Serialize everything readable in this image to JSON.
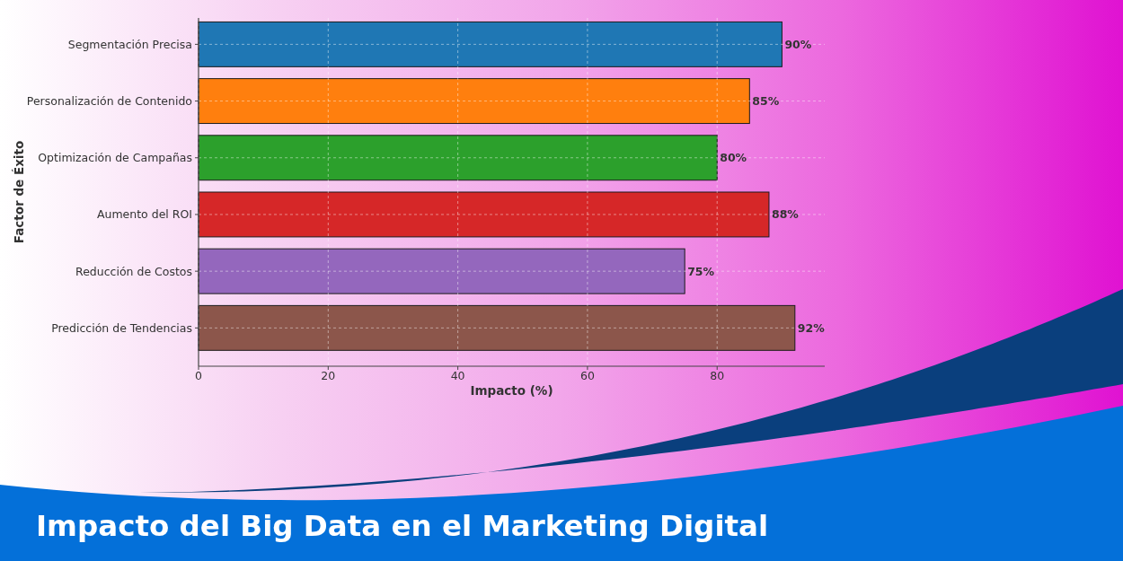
{
  "chart_data": {
    "type": "bar",
    "orientation": "horizontal",
    "title": "Impacto del Big Data en el Marketing Digital",
    "xlabel": "Impacto (%)",
    "ylabel": "Factor de Éxito",
    "categories": [
      "Segmentación Precisa",
      "Personalización de Contenido",
      "Optimización de Campañas",
      "Aumento del ROI",
      "Reducción de Costos",
      "Predicción de Tendencias"
    ],
    "values": [
      90,
      85,
      80,
      88,
      75,
      92
    ],
    "colors": [
      "#1f77b4",
      "#ff7f0e",
      "#2ca02c",
      "#d62728",
      "#9467bd",
      "#8c564b"
    ],
    "value_labels": [
      "90%",
      "85%",
      "80%",
      "88%",
      "75%",
      "92%"
    ],
    "xlim": [
      0,
      96.6
    ],
    "xticks": [
      0,
      20,
      40,
      60,
      80
    ],
    "grid": true
  }
}
